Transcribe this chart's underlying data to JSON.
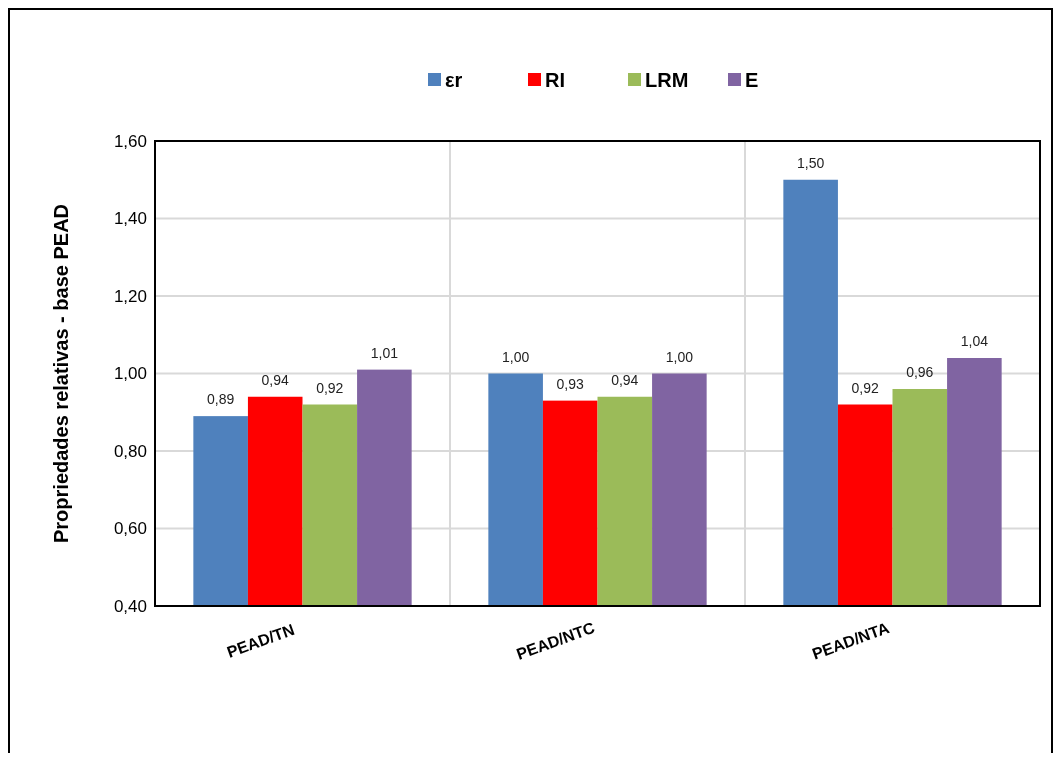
{
  "chart_data": {
    "type": "bar",
    "ylabel": "Propriedades relativas - base PEAD",
    "categories": [
      "PEAD/TN",
      "PEAD/NTC",
      "PEAD/NTA"
    ],
    "series": [
      {
        "name": "εr",
        "color": "#4f81bd",
        "values": [
          0.89,
          1.0,
          1.5
        ],
        "value_labels": [
          "0,89",
          "1,00",
          "1,50"
        ]
      },
      {
        "name": "RI",
        "color": "#ff0000",
        "values": [
          0.94,
          0.93,
          0.92
        ],
        "value_labels": [
          "0,94",
          "0,93",
          "0,92"
        ]
      },
      {
        "name": "LRM",
        "color": "#9bbb59",
        "values": [
          0.92,
          0.94,
          0.96
        ],
        "value_labels": [
          "0,92",
          "0,94",
          "0,96"
        ]
      },
      {
        "name": "E",
        "color": "#8064a2",
        "values": [
          1.01,
          1.0,
          1.04
        ],
        "value_labels": [
          "1,01",
          "1,00",
          "1,04"
        ]
      }
    ],
    "ylim": [
      0.4,
      1.6
    ],
    "yticks": [
      {
        "value": 0.4,
        "label": "0,40"
      },
      {
        "value": 0.6,
        "label": "0,60"
      },
      {
        "value": 0.8,
        "label": "0,80"
      },
      {
        "value": 1.0,
        "label": "1,00"
      },
      {
        "value": 1.2,
        "label": "1,20"
      },
      {
        "value": 1.4,
        "label": "1,40"
      },
      {
        "value": 1.6,
        "label": "1,60"
      }
    ],
    "grid": true,
    "legend": "top"
  }
}
